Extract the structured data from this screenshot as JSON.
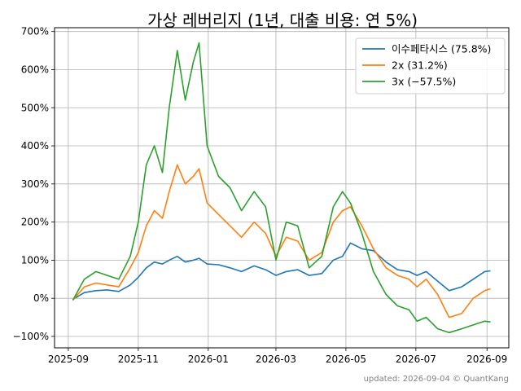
{
  "chart_data": {
    "type": "line",
    "title": "가상 레버리지 (1년, 대출 비용: 연 5%)",
    "footer": "updated: 2026-09-04 © QuantKang",
    "xlabel": "",
    "ylabel": "",
    "grid": true,
    "legend_position": "top-right",
    "xlim": [
      "2025-08-20",
      "2026-09-20"
    ],
    "ylim": [
      -130,
      710
    ],
    "x_ticks": [
      "2025-09",
      "2025-11",
      "2026-01",
      "2026-03",
      "2026-05",
      "2026-07",
      "2026-09"
    ],
    "x_tick_dates": [
      "2025-09-01",
      "2025-11-01",
      "2026-01-01",
      "2026-03-01",
      "2026-05-01",
      "2026-07-01",
      "2026-09-01"
    ],
    "y_ticks": [
      -100,
      0,
      100,
      200,
      300,
      400,
      500,
      600,
      700
    ],
    "y_tick_labels": [
      "−100%",
      "0%",
      "100%",
      "200%",
      "300%",
      "400%",
      "500%",
      "600%",
      "700%"
    ],
    "x": [
      "2025-09-05",
      "2025-09-15",
      "2025-09-25",
      "2025-10-05",
      "2025-10-15",
      "2025-10-25",
      "2025-11-01",
      "2025-11-08",
      "2025-11-15",
      "2025-11-22",
      "2025-11-28",
      "2025-12-05",
      "2025-12-12",
      "2025-12-19",
      "2025-12-24",
      "2025-12-31",
      "2026-01-10",
      "2026-01-20",
      "2026-01-30",
      "2026-02-10",
      "2026-02-20",
      "2026-03-01",
      "2026-03-10",
      "2026-03-20",
      "2026-03-30",
      "2026-04-10",
      "2026-04-20",
      "2026-04-28",
      "2026-05-05",
      "2026-05-15",
      "2026-05-25",
      "2026-06-05",
      "2026-06-15",
      "2026-06-25",
      "2026-07-02",
      "2026-07-10",
      "2026-07-20",
      "2026-07-30",
      "2026-08-10",
      "2026-08-20",
      "2026-08-30",
      "2026-09-04"
    ],
    "series": [
      {
        "name": "이수페타시스 (75.8%)",
        "color": "#1f77b4",
        "values": [
          -3,
          15,
          20,
          22,
          18,
          35,
          55,
          80,
          95,
          90,
          100,
          110,
          95,
          100,
          105,
          90,
          88,
          80,
          70,
          85,
          75,
          60,
          70,
          75,
          60,
          65,
          100,
          110,
          145,
          130,
          125,
          95,
          75,
          70,
          60,
          70,
          45,
          20,
          30,
          50,
          70,
          72
        ]
      },
      {
        "name": "2x (31.2%)",
        "color": "#ff7f0e",
        "values": [
          -5,
          30,
          40,
          35,
          30,
          80,
          120,
          190,
          230,
          210,
          280,
          350,
          300,
          320,
          340,
          250,
          220,
          190,
          160,
          200,
          170,
          110,
          160,
          150,
          100,
          120,
          200,
          230,
          240,
          190,
          130,
          80,
          60,
          50,
          30,
          50,
          10,
          -50,
          -40,
          0,
          20,
          25
        ]
      },
      {
        "name": "3x (−57.5%)",
        "color": "#2ca02c",
        "values": [
          -5,
          50,
          70,
          60,
          50,
          110,
          200,
          350,
          400,
          330,
          500,
          650,
          520,
          620,
          670,
          400,
          320,
          290,
          230,
          280,
          240,
          100,
          200,
          190,
          80,
          110,
          240,
          280,
          250,
          170,
          70,
          10,
          -20,
          -30,
          -60,
          -50,
          -80,
          -90,
          -80,
          -70,
          -60,
          -62
        ]
      }
    ]
  }
}
